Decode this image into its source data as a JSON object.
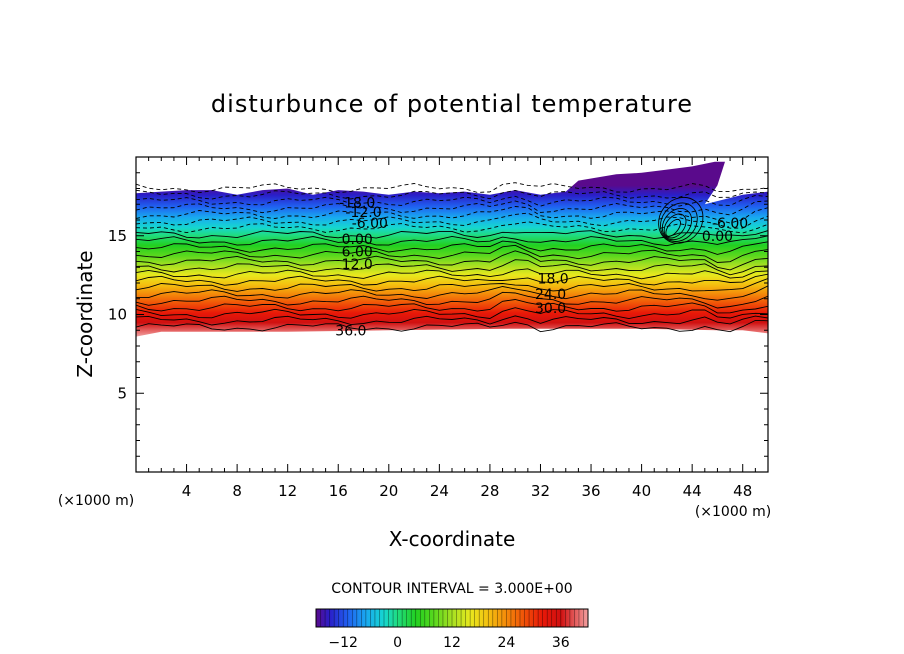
{
  "chart_data": {
    "type": "heatmap",
    "title": "disturbunce of potential temperature",
    "xlabel": "X-coordinate",
    "ylabel": "Z-coordinate",
    "x_unit": "(×1000 m)",
    "y_unit": "(×1000 m)",
    "xlim": [
      0,
      50
    ],
    "ylim": [
      0,
      20
    ],
    "x_ticks": [
      4,
      8,
      12,
      16,
      20,
      24,
      28,
      32,
      36,
      40,
      44,
      48
    ],
    "y_ticks": [
      5,
      10,
      15
    ],
    "contour_interval": "CONTOUR INTERVAL = 3.000E+00",
    "colorbar": {
      "ticks": [
        -12,
        0,
        12,
        24,
        36
      ],
      "tick_labels": [
        "−12",
        "0",
        "12",
        "24",
        "36"
      ],
      "range": [
        -18,
        42
      ]
    },
    "field_bottom_km": [
      [
        0,
        8.6
      ],
      [
        2,
        8.9
      ],
      [
        6,
        8.9
      ],
      [
        12,
        8.9
      ],
      [
        20,
        9.0
      ],
      [
        30,
        9.1
      ],
      [
        40,
        9.1
      ],
      [
        46,
        9.0
      ],
      [
        48,
        9.0
      ],
      [
        50,
        8.8
      ]
    ],
    "field_top_km": [
      [
        0,
        17.7
      ],
      [
        2,
        17.8
      ],
      [
        4,
        17.9
      ],
      [
        6,
        17.9
      ],
      [
        8,
        17.6
      ],
      [
        10,
        17.9
      ],
      [
        12,
        18.0
      ],
      [
        14,
        17.6
      ],
      [
        16,
        17.9
      ],
      [
        18,
        17.8
      ],
      [
        20,
        17.6
      ],
      [
        22,
        17.8
      ],
      [
        24,
        17.7
      ],
      [
        26,
        17.8
      ],
      [
        28,
        17.6
      ],
      [
        30,
        17.9
      ],
      [
        32,
        17.6
      ],
      [
        34,
        17.8
      ],
      [
        35,
        18.5
      ],
      [
        38,
        18.9
      ],
      [
        40,
        19.0
      ],
      [
        42,
        19.2
      ],
      [
        44,
        19.4
      ],
      [
        45.8,
        19.7
      ],
      [
        46.6,
        19.7
      ],
      [
        46,
        18.2
      ],
      [
        45,
        17.0
      ],
      [
        48,
        17.6
      ],
      [
        50,
        17.8
      ]
    ],
    "contour_labels": [
      {
        "text": "-18.0",
        "x": 17.5,
        "z": 17.1
      },
      {
        "text": "-12.0",
        "x": 18.0,
        "z": 16.5
      },
      {
        "text": "-6.00",
        "x": 18.5,
        "z": 15.8
      },
      {
        "text": "0.00",
        "x": 17.5,
        "z": 14.8
      },
      {
        "text": "6.00",
        "x": 17.5,
        "z": 14.0
      },
      {
        "text": "12.0",
        "x": 17.5,
        "z": 13.2
      },
      {
        "text": "18.0",
        "x": 33.0,
        "z": 12.3
      },
      {
        "text": "24.0",
        "x": 32.8,
        "z": 11.3
      },
      {
        "text": "30.0",
        "x": 32.8,
        "z": 10.4
      },
      {
        "text": "36.0",
        "x": 17.0,
        "z": 9.0
      },
      {
        "text": "-6.00",
        "x": 47.0,
        "z": 15.8
      },
      {
        "text": "0.00",
        "x": 46.0,
        "z": 15.0
      }
    ],
    "plume": {
      "x": 42.5,
      "z": 15.5,
      "note_value": "positive anomaly near x=42-46, z=15-17"
    },
    "grid": false,
    "legend_placement": "bottom"
  }
}
